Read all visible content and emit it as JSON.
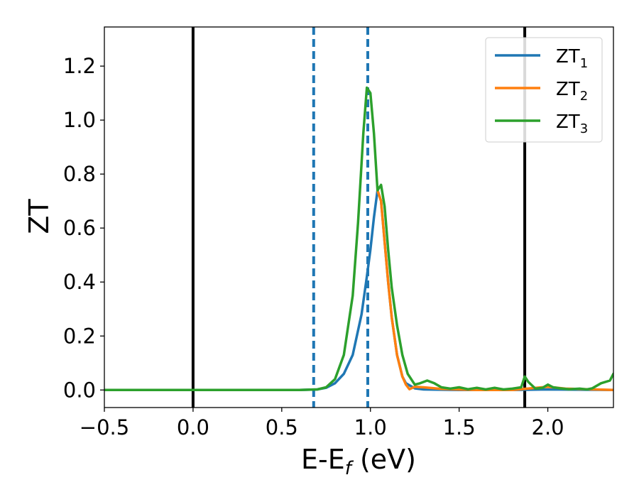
{
  "chart_data": {
    "type": "line",
    "xlabel": "E-E",
    "xlabel_sub": "f",
    "xlabel_unit": " (eV)",
    "ylabel": "ZT",
    "xlim": [
      -0.5,
      2.37
    ],
    "ylim": [
      -0.065,
      1.345
    ],
    "xticks": [
      -0.5,
      0.0,
      0.5,
      1.0,
      1.5,
      2.0
    ],
    "xtick_labels": [
      "−0.5",
      "0.0",
      "0.5",
      "1.0",
      "1.5",
      "2.0"
    ],
    "yticks": [
      0.0,
      0.2,
      0.4,
      0.6,
      0.8,
      1.0,
      1.2
    ],
    "ytick_labels": [
      "0.0",
      "0.2",
      "0.4",
      "0.6",
      "0.8",
      "1.0",
      "1.2"
    ],
    "grid": false,
    "legend_position": "top-right",
    "vertical_lines": [
      {
        "x": 0.0,
        "style": "solid",
        "color": "#000000"
      },
      {
        "x": 1.87,
        "style": "solid",
        "color": "#000000"
      },
      {
        "x": 0.68,
        "style": "dashed",
        "color": "#1f77b4"
      },
      {
        "x": 0.985,
        "style": "dashed",
        "color": "#1f77b4"
      }
    ],
    "series": [
      {
        "name": "ZT",
        "name_sub": "1",
        "color": "#1f77b4",
        "x": [
          -0.5,
          0.6,
          0.7,
          0.75,
          0.8,
          0.85,
          0.9,
          0.95,
          0.98,
          1.0,
          1.02,
          1.04,
          1.06,
          1.08,
          1.1,
          1.12,
          1.15,
          1.18,
          1.2,
          1.25,
          1.3,
          1.5,
          1.8,
          2.0,
          2.37
        ],
        "y": [
          0.0,
          0.0,
          0.002,
          0.008,
          0.025,
          0.06,
          0.13,
          0.28,
          0.42,
          0.52,
          0.64,
          0.74,
          0.7,
          0.55,
          0.4,
          0.27,
          0.13,
          0.05,
          0.025,
          0.006,
          0.002,
          0.0,
          0.0,
          0.002,
          0.0
        ]
      },
      {
        "name": "ZT",
        "name_sub": "2",
        "color": "#ff7f0e",
        "x": [
          1.04,
          1.06,
          1.08,
          1.1,
          1.12,
          1.15,
          1.18,
          1.2,
          1.22,
          1.25,
          1.3,
          1.4,
          1.6,
          1.8,
          2.0,
          2.1,
          2.37
        ],
        "y": [
          0.74,
          0.7,
          0.55,
          0.4,
          0.27,
          0.13,
          0.05,
          0.02,
          0.003,
          0.012,
          0.01,
          0.004,
          0.0,
          0.0,
          0.012,
          0.005,
          0.0
        ]
      },
      {
        "name": "ZT",
        "name_sub": "3",
        "color": "#2ca02c",
        "x": [
          -0.5,
          0.6,
          0.7,
          0.75,
          0.8,
          0.85,
          0.9,
          0.93,
          0.96,
          0.98,
          1.0,
          1.02,
          1.04,
          1.06,
          1.08,
          1.1,
          1.12,
          1.15,
          1.18,
          1.21,
          1.25,
          1.28,
          1.32,
          1.36,
          1.4,
          1.45,
          1.5,
          1.55,
          1.6,
          1.65,
          1.7,
          1.75,
          1.8,
          1.85,
          1.87,
          1.89,
          1.93,
          1.97,
          2.0,
          2.03,
          2.07,
          2.12,
          2.18,
          2.22,
          2.25,
          2.3,
          2.35,
          2.37
        ],
        "y": [
          0.0,
          0.0,
          0.002,
          0.01,
          0.04,
          0.13,
          0.35,
          0.62,
          0.95,
          1.12,
          1.1,
          0.95,
          0.74,
          0.76,
          0.68,
          0.52,
          0.38,
          0.24,
          0.13,
          0.06,
          0.02,
          0.025,
          0.035,
          0.025,
          0.01,
          0.005,
          0.01,
          0.003,
          0.008,
          0.002,
          0.008,
          0.002,
          0.005,
          0.01,
          0.05,
          0.03,
          0.005,
          0.008,
          0.02,
          0.01,
          0.006,
          0.003,
          0.005,
          0.002,
          0.006,
          0.025,
          0.035,
          0.06
        ]
      }
    ]
  }
}
